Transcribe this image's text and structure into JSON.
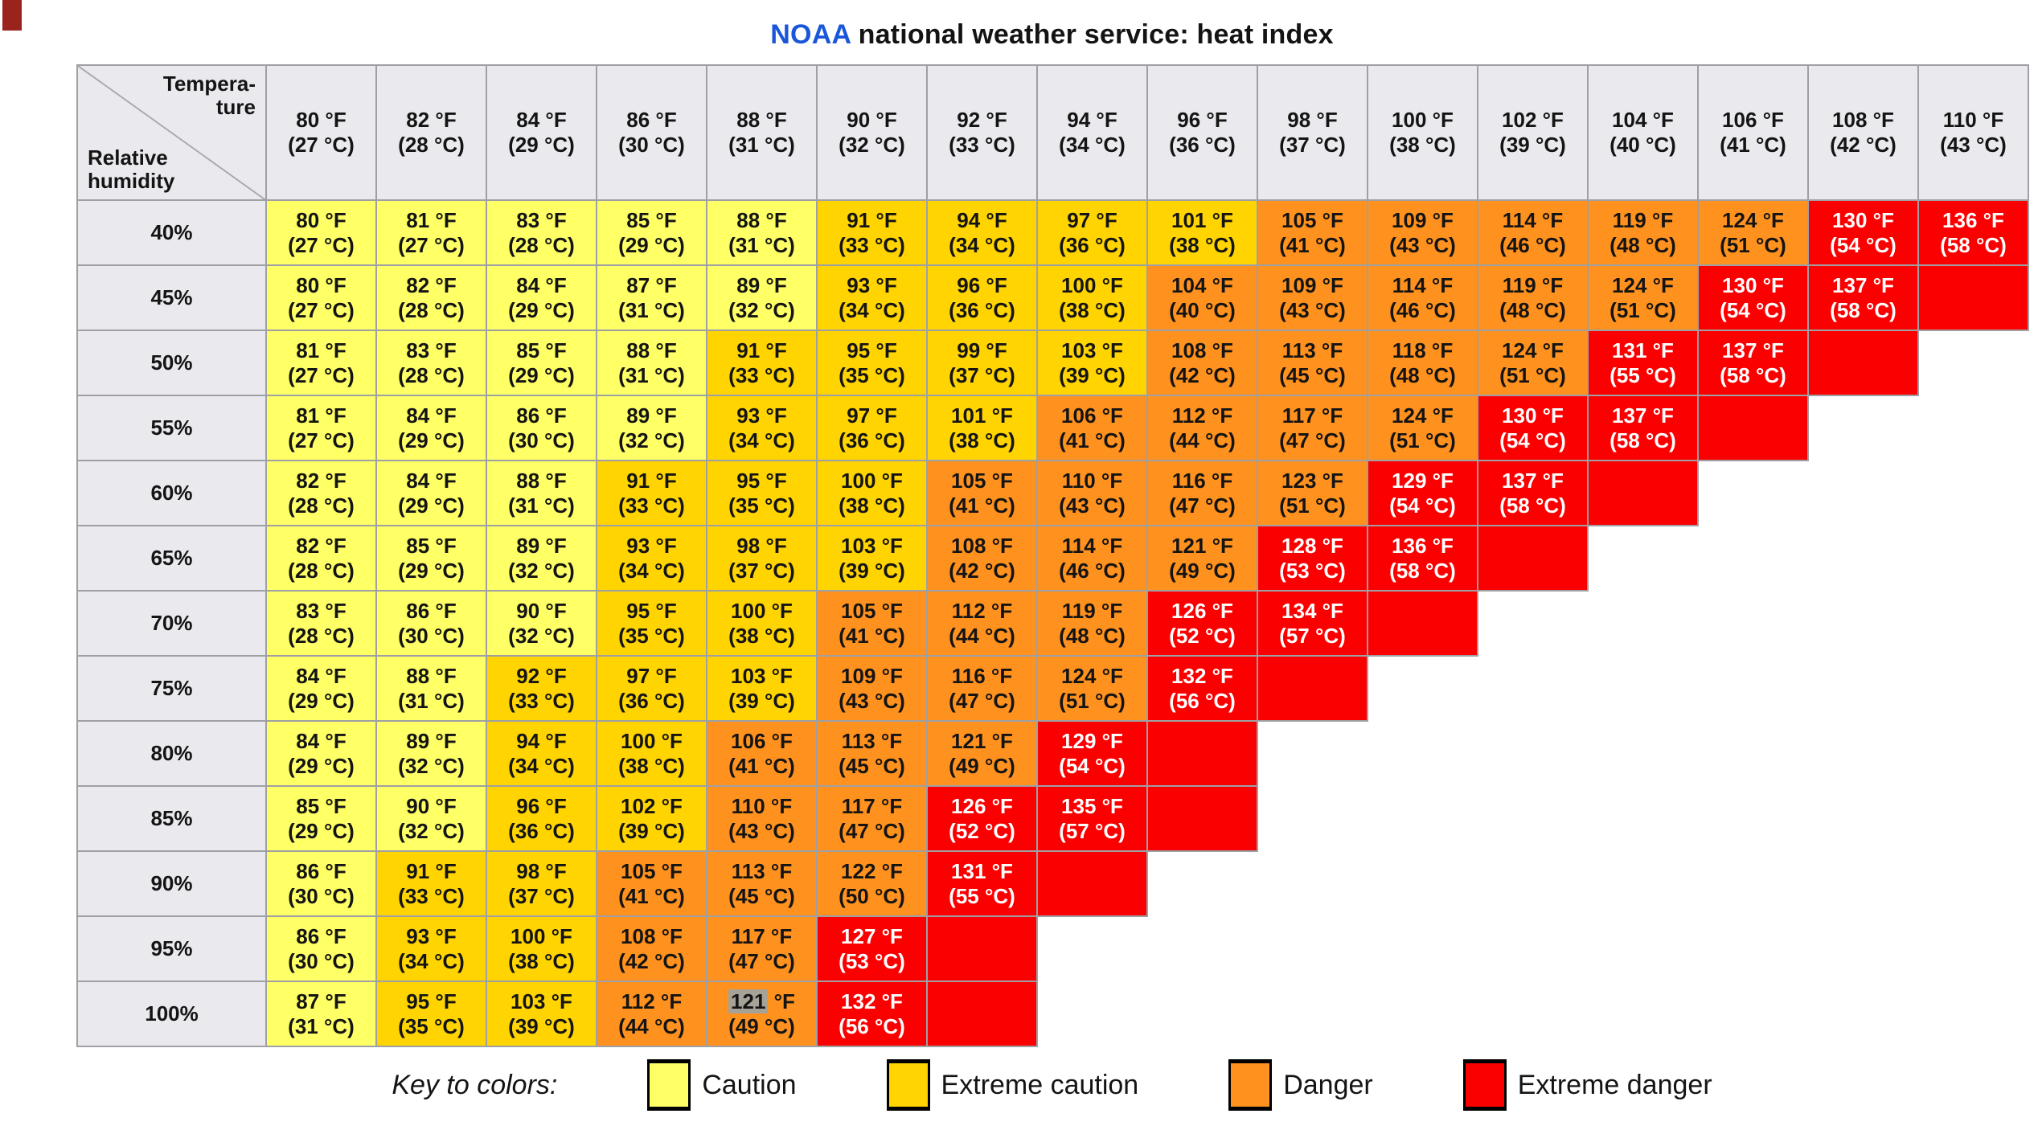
{
  "title": {
    "brand": "NOAA",
    "brand_color": "#1a57d8",
    "text": "national weather service: heat index"
  },
  "corner": {
    "top_line1": "Tempera-",
    "top_line2": "ture",
    "bottom_line1": "Relative",
    "bottom_line2": "humidity"
  },
  "chart_data": {
    "type": "heatmap",
    "title": "NOAA national weather service: heat index",
    "x_axis_label": "Temperature",
    "y_axis_label": "Relative humidity",
    "f_unit": "°F",
    "c_unit": "°C",
    "columns": [
      {
        "f": 80,
        "c": 27
      },
      {
        "f": 82,
        "c": 28
      },
      {
        "f": 84,
        "c": 29
      },
      {
        "f": 86,
        "c": 30
      },
      {
        "f": 88,
        "c": 31
      },
      {
        "f": 90,
        "c": 32
      },
      {
        "f": 92,
        "c": 33
      },
      {
        "f": 94,
        "c": 34
      },
      {
        "f": 96,
        "c": 36
      },
      {
        "f": 98,
        "c": 37
      },
      {
        "f": 100,
        "c": 38
      },
      {
        "f": 102,
        "c": 39
      },
      {
        "f": 104,
        "c": 40
      },
      {
        "f": 106,
        "c": 41
      },
      {
        "f": 108,
        "c": 42
      },
      {
        "f": 110,
        "c": 43
      }
    ],
    "rows": [
      {
        "h": "40%",
        "f": [
          80,
          81,
          83,
          85,
          88,
          91,
          94,
          97,
          101,
          105,
          109,
          114,
          119,
          124,
          130,
          136
        ],
        "c": [
          27,
          27,
          28,
          29,
          31,
          33,
          34,
          36,
          38,
          41,
          43,
          46,
          48,
          51,
          54,
          58
        ],
        "l": [
          "c",
          "c",
          "c",
          "c",
          "c",
          "e",
          "e",
          "e",
          "e",
          "d",
          "d",
          "d",
          "d",
          "d",
          "x",
          "x"
        ],
        "empty": false
      },
      {
        "h": "45%",
        "f": [
          80,
          82,
          84,
          87,
          89,
          93,
          96,
          100,
          104,
          109,
          114,
          119,
          124,
          130,
          137
        ],
        "c": [
          27,
          28,
          29,
          31,
          32,
          34,
          36,
          38,
          40,
          43,
          46,
          48,
          51,
          54,
          58
        ],
        "l": [
          "c",
          "c",
          "c",
          "c",
          "c",
          "e",
          "e",
          "e",
          "d",
          "d",
          "d",
          "d",
          "d",
          "x",
          "x"
        ],
        "empty": true
      },
      {
        "h": "50%",
        "f": [
          81,
          83,
          85,
          88,
          91,
          95,
          99,
          103,
          108,
          113,
          118,
          124,
          131,
          137
        ],
        "c": [
          27,
          28,
          29,
          31,
          33,
          35,
          37,
          39,
          42,
          45,
          48,
          51,
          55,
          58
        ],
        "l": [
          "c",
          "c",
          "c",
          "c",
          "e",
          "e",
          "e",
          "e",
          "d",
          "d",
          "d",
          "d",
          "x",
          "x"
        ],
        "empty": true
      },
      {
        "h": "55%",
        "f": [
          81,
          84,
          86,
          89,
          93,
          97,
          101,
          106,
          112,
          117,
          124,
          130,
          137
        ],
        "c": [
          27,
          29,
          30,
          32,
          34,
          36,
          38,
          41,
          44,
          47,
          51,
          54,
          58
        ],
        "l": [
          "c",
          "c",
          "c",
          "c",
          "e",
          "e",
          "e",
          "d",
          "d",
          "d",
          "d",
          "x",
          "x"
        ],
        "empty": true
      },
      {
        "h": "60%",
        "f": [
          82,
          84,
          88,
          91,
          95,
          100,
          105,
          110,
          116,
          123,
          129,
          137
        ],
        "c": [
          28,
          29,
          31,
          33,
          35,
          38,
          41,
          43,
          47,
          51,
          54,
          58
        ],
        "l": [
          "c",
          "c",
          "c",
          "e",
          "e",
          "e",
          "d",
          "d",
          "d",
          "d",
          "x",
          "x"
        ],
        "empty": true
      },
      {
        "h": "65%",
        "f": [
          82,
          85,
          89,
          93,
          98,
          103,
          108,
          114,
          121,
          128,
          136
        ],
        "c": [
          28,
          29,
          32,
          34,
          37,
          39,
          42,
          46,
          49,
          53,
          58
        ],
        "l": [
          "c",
          "c",
          "c",
          "e",
          "e",
          "e",
          "d",
          "d",
          "d",
          "x",
          "x"
        ],
        "empty": true
      },
      {
        "h": "70%",
        "f": [
          83,
          86,
          90,
          95,
          100,
          105,
          112,
          119,
          126,
          134
        ],
        "c": [
          28,
          30,
          32,
          35,
          38,
          41,
          44,
          48,
          52,
          57
        ],
        "l": [
          "c",
          "c",
          "c",
          "e",
          "e",
          "d",
          "d",
          "d",
          "x",
          "x"
        ],
        "empty": true
      },
      {
        "h": "75%",
        "f": [
          84,
          88,
          92,
          97,
          103,
          109,
          116,
          124,
          132
        ],
        "c": [
          29,
          31,
          33,
          36,
          39,
          43,
          47,
          51,
          56
        ],
        "l": [
          "c",
          "c",
          "e",
          "e",
          "e",
          "d",
          "d",
          "d",
          "x"
        ],
        "empty": true
      },
      {
        "h": "80%",
        "f": [
          84,
          89,
          94,
          100,
          106,
          113,
          121,
          129
        ],
        "c": [
          29,
          32,
          34,
          38,
          41,
          45,
          49,
          54
        ],
        "l": [
          "c",
          "c",
          "e",
          "e",
          "d",
          "d",
          "d",
          "x"
        ],
        "empty": true
      },
      {
        "h": "85%",
        "f": [
          85,
          90,
          96,
          102,
          110,
          117,
          126,
          135
        ],
        "c": [
          29,
          32,
          36,
          39,
          43,
          47,
          52,
          57
        ],
        "l": [
          "c",
          "c",
          "e",
          "e",
          "d",
          "d",
          "x",
          "x"
        ],
        "empty": true
      },
      {
        "h": "90%",
        "f": [
          86,
          91,
          98,
          105,
          113,
          122,
          131
        ],
        "c": [
          30,
          33,
          37,
          41,
          45,
          50,
          55
        ],
        "l": [
          "c",
          "e",
          "e",
          "d",
          "d",
          "d",
          "x"
        ],
        "empty": true
      },
      {
        "h": "95%",
        "f": [
          86,
          93,
          100,
          108,
          117,
          127
        ],
        "c": [
          30,
          34,
          38,
          42,
          47,
          53
        ],
        "l": [
          "c",
          "e",
          "e",
          "d",
          "d",
          "x"
        ],
        "empty": true
      },
      {
        "h": "100%",
        "f": [
          87,
          95,
          103,
          112,
          121,
          132
        ],
        "c": [
          31,
          35,
          39,
          44,
          49,
          56
        ],
        "l": [
          "c",
          "e",
          "e",
          "d",
          "d",
          "x"
        ],
        "empty": true,
        "hl": 4
      }
    ],
    "level_names": {
      "c": "Caution",
      "e": "Extreme caution",
      "d": "Danger",
      "x": "Extreme danger"
    },
    "level_colors": {
      "c": "#ffff66",
      "e": "#ffd400",
      "d": "#ff911e",
      "x": "#fb0000"
    }
  },
  "legend": {
    "label": "Key to colors:",
    "items": [
      {
        "key": "c",
        "label": "Caution"
      },
      {
        "key": "e",
        "label": "Extreme caution"
      },
      {
        "key": "d",
        "label": "Danger"
      },
      {
        "key": "x",
        "label": "Extreme danger"
      }
    ]
  }
}
